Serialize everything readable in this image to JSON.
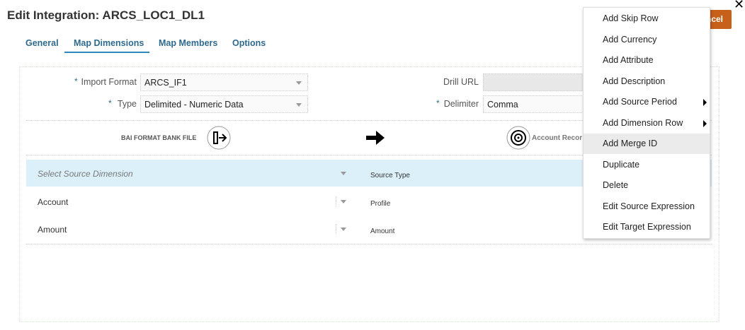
{
  "title": "Edit Integration: ARCS_LOC1_DL1",
  "tabs": [
    {
      "label": "General"
    },
    {
      "label": "Map Dimensions",
      "active": true
    },
    {
      "label": "Map Members"
    },
    {
      "label": "Options"
    }
  ],
  "cancel_label": "ncel",
  "form": {
    "import_format_label": "Import Format",
    "import_format_value": "ARCS_IF1",
    "type_label": "Type",
    "type_value": "Delimited - Numeric Data",
    "drill_url_label": "Drill URL",
    "drill_url_value": "",
    "delimiter_label": "Delimiter",
    "delimiter_value": "Comma",
    "required_mark": "*"
  },
  "flow": {
    "source": "BAI FORMAT BANK FILE",
    "target": "Account Recor"
  },
  "grid": {
    "placeholder": "Select Source Dimension",
    "source_type_header": "Source Type",
    "rows": [
      {
        "dimension": "Account",
        "source_type": "Profile"
      },
      {
        "dimension": "Amount",
        "source_type": "Amount"
      }
    ]
  },
  "menu": [
    {
      "label": "Add Skip Row"
    },
    {
      "label": "Add Currency"
    },
    {
      "label": "Add Attribute"
    },
    {
      "label": "Add Description"
    },
    {
      "label": "Add Source Period",
      "submenu": true
    },
    {
      "label": "Add Dimension Row",
      "submenu": true
    },
    {
      "label": "Add Merge ID",
      "highlighted": true
    },
    {
      "label": "Duplicate"
    },
    {
      "label": "Delete"
    },
    {
      "label": "Edit Source Expression"
    },
    {
      "label": "Edit Target Expression"
    }
  ],
  "colors": {
    "accent": "#2e6a8e",
    "cancel": "#c6601a",
    "row_highlight": "#dcf0fa"
  }
}
